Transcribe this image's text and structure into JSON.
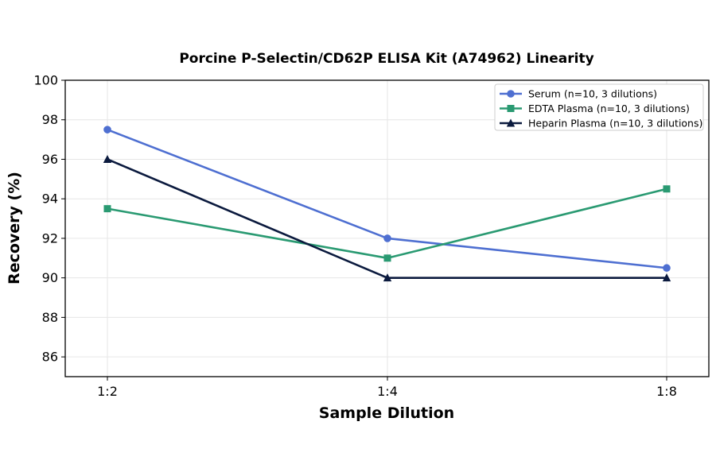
{
  "chart_data": {
    "type": "line",
    "title": "Porcine P-Selectin/CD62P ELISA Kit (A74962) Linearity",
    "xlabel": "Sample Dilution",
    "ylabel": "Recovery (%)",
    "categories": [
      "1:2",
      "1:4",
      "1:8"
    ],
    "ylim": [
      85,
      100
    ],
    "yticks": [
      86,
      88,
      90,
      92,
      94,
      96,
      98,
      100
    ],
    "grid": true,
    "legend_position": "top-right",
    "series": [
      {
        "name": "Serum (n=10, 3 dilutions)",
        "values": [
          97.5,
          92.0,
          90.5
        ],
        "color": "#4e6fd1",
        "marker": "circle"
      },
      {
        "name": "EDTA Plasma (n=10, 3 dilutions)",
        "values": [
          93.5,
          91.0,
          94.5
        ],
        "color": "#2a9a72",
        "marker": "square"
      },
      {
        "name": "Heparin Plasma (n=10, 3 dilutions)",
        "values": [
          96.0,
          90.0,
          90.0
        ],
        "color": "#0b1a3e",
        "marker": "triangle"
      }
    ]
  }
}
